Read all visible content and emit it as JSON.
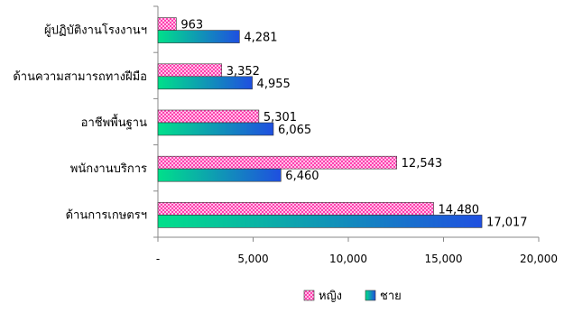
{
  "chart_data": {
    "type": "bar",
    "orientation": "horizontal",
    "categories": [
      "ผู้ปฏิบัติงานโรงงานฯ",
      "ด้านความสามารถทางฝีมือ",
      "อาชีพพื้นฐาน",
      "พนักงานบริการ",
      "ด้านการเกษตรฯ"
    ],
    "series": [
      {
        "name": "หญิง",
        "values": [
          963,
          3352,
          5301,
          12543,
          14480
        ],
        "labels": [
          "963",
          "3,352",
          "5,301",
          "12,543",
          "14,480"
        ],
        "color": "#ff66cc",
        "pattern": "checker"
      },
      {
        "name": "ชาย",
        "values": [
          4281,
          4955,
          6065,
          6460,
          17017
        ],
        "labels": [
          "4,281",
          "4,955",
          "6,065",
          "6,460",
          "17,017"
        ],
        "color": "#1f6fe0",
        "pattern": "gradient-green-blue"
      }
    ],
    "xlim": [
      0,
      20000
    ],
    "x_ticks": [
      0,
      5000,
      10000,
      15000,
      20000
    ],
    "x_tick_labels": [
      "-",
      "5,000",
      "10,000",
      "15,000",
      "20,000"
    ],
    "legend": {
      "position": "bottom",
      "entries": [
        "หญิง",
        "ชาย"
      ]
    },
    "grid": false,
    "title": "",
    "xlabel": "",
    "ylabel": ""
  }
}
